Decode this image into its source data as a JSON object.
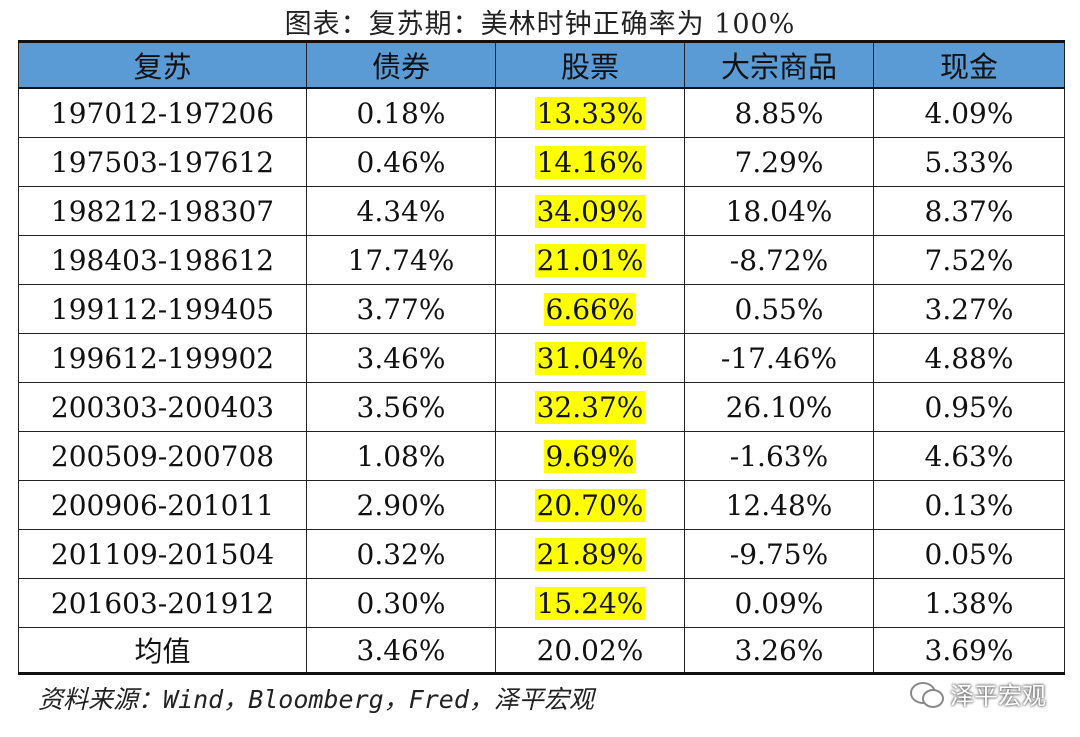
{
  "title": "图表：复苏期：美林时钟正确率为 100%",
  "table": {
    "headers": [
      "复苏",
      "债券",
      "股票",
      "大宗商品",
      "现金"
    ],
    "rows": [
      [
        "197012-197206",
        "0.18%",
        "13.33%",
        "8.85%",
        "4.09%"
      ],
      [
        "197503-197612",
        "0.46%",
        "14.16%",
        "7.29%",
        "5.33%"
      ],
      [
        "198212-198307",
        "4.34%",
        "34.09%",
        "18.04%",
        "8.37%"
      ],
      [
        "198403-198612",
        "17.74%",
        "21.01%",
        "-8.72%",
        "7.52%"
      ],
      [
        "199112-199405",
        "3.77%",
        "6.66%",
        "0.55%",
        "3.27%"
      ],
      [
        "199612-199902",
        "3.46%",
        "31.04%",
        "-17.46%",
        "4.88%"
      ],
      [
        "200303-200403",
        "3.56%",
        "32.37%",
        "26.10%",
        "0.95%"
      ],
      [
        "200509-200708",
        "1.08%",
        "9.69%",
        "-1.63%",
        "4.63%"
      ],
      [
        "200906-201011",
        "2.90%",
        "20.70%",
        "12.48%",
        "0.13%"
      ],
      [
        "201109-201504",
        "0.32%",
        "21.89%",
        "-9.75%",
        "0.05%"
      ],
      [
        "201603-201912",
        "0.30%",
        "15.24%",
        "0.09%",
        "1.38%"
      ]
    ],
    "average": [
      "均值",
      "3.46%",
      "20.02%",
      "3.26%",
      "3.69%"
    ]
  },
  "source": "资料来源：Wind，Bloomberg，Fred，泽平宏观",
  "watermark": {
    "text": "泽平宏观",
    "icon": "wechat-icon"
  },
  "colors": {
    "header_bg": "#5b9bd5",
    "highlight": "#ffff00"
  }
}
